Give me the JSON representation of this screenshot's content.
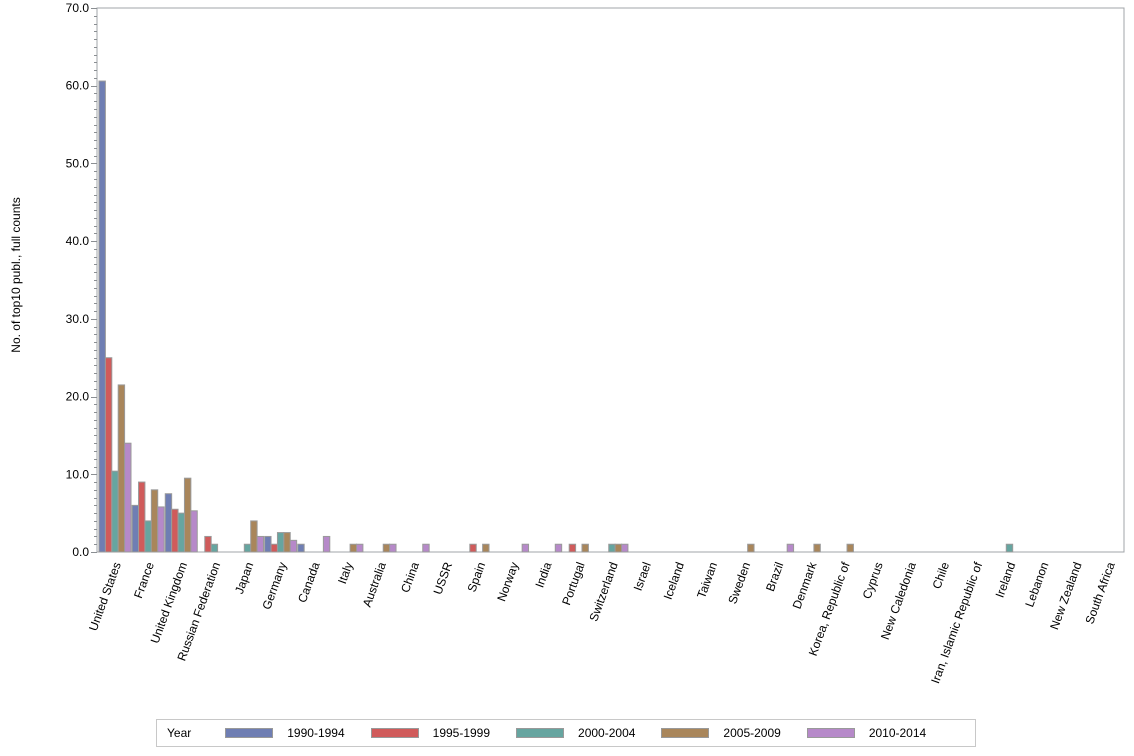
{
  "chart_data": {
    "type": "bar",
    "title": "",
    "xlabel": "",
    "ylabel": "No. of top10 publ., full counts",
    "ylim": [
      0,
      70
    ],
    "yticks": [
      "0.0",
      "10.0",
      "20.0",
      "30.0",
      "40.0",
      "50.0",
      "60.0",
      "70.0"
    ],
    "grid": false,
    "legend_position": "bottom",
    "legend_title": "Year",
    "categories": [
      "United States",
      "France",
      "United Kingdom",
      "Russian Federation",
      "Japan",
      "Germany",
      "Canada",
      "Italy",
      "Australia",
      "China",
      "USSR",
      "Spain",
      "Norway",
      "India",
      "Portugal",
      "Switzerland",
      "Israel",
      "Iceland",
      "Taiwan",
      "Sweden",
      "Brazil",
      "Denmark",
      "Korea, Republic of",
      "Cyprus",
      "New Caledonia",
      "Chile",
      "Iran, Islamic Republic of",
      "Ireland",
      "Lebanon",
      "New Zealand",
      "South Africa"
    ],
    "series": [
      {
        "name": "1990-1994",
        "color": "#6f7eb3",
        "values": [
          60.6,
          6.0,
          7.5,
          0,
          0,
          2.0,
          1.0,
          0,
          0,
          0,
          0,
          0,
          0,
          0,
          0,
          0,
          0,
          0,
          0,
          0,
          0,
          0,
          0,
          0,
          0,
          0,
          0,
          0,
          0,
          0,
          0
        ]
      },
      {
        "name": "1995-1999",
        "color": "#d05b5b",
        "values": [
          25.0,
          9.0,
          5.5,
          2.0,
          0,
          1.0,
          0,
          0,
          0,
          0,
          0,
          1.0,
          0,
          0,
          1.0,
          0,
          0,
          0,
          0,
          0,
          0,
          0,
          0,
          0,
          0,
          0,
          0,
          0,
          0,
          0,
          0
        ]
      },
      {
        "name": "2000-2004",
        "color": "#66a5a0",
        "values": [
          10.4,
          4.0,
          5.0,
          1.0,
          1.0,
          2.5,
          0,
          0,
          0,
          0,
          0,
          0,
          0,
          0,
          0,
          1.0,
          0,
          0,
          0,
          0,
          0,
          0,
          0,
          0,
          0,
          0,
          0,
          1.0,
          0,
          0,
          0
        ]
      },
      {
        "name": "2005-2009",
        "color": "#a9865b",
        "values": [
          21.5,
          8.0,
          9.5,
          0,
          4.0,
          2.5,
          0,
          1.0,
          1.0,
          0,
          0,
          1.0,
          0,
          0,
          1.0,
          1.0,
          0,
          0,
          0,
          1.0,
          0,
          1.0,
          1.0,
          0,
          0,
          0,
          0,
          0,
          0,
          0,
          0
        ]
      },
      {
        "name": "2010-2014",
        "color": "#b689c9",
        "values": [
          14.0,
          5.8,
          5.3,
          0,
          2.0,
          1.5,
          2.0,
          1.0,
          1.0,
          1.0,
          0,
          0,
          1.0,
          1.0,
          0,
          1.0,
          0,
          0,
          0,
          0,
          1.0,
          0,
          0,
          0,
          0,
          0,
          0,
          0,
          0,
          0,
          0
        ]
      }
    ]
  },
  "legend": {
    "title": "Year",
    "items": [
      {
        "label": "1990-1994",
        "color": "#6f7eb3"
      },
      {
        "label": "1995-1999",
        "color": "#d05b5b"
      },
      {
        "label": "2000-2004",
        "color": "#66a5a0"
      },
      {
        "label": "2005-2009",
        "color": "#a9865b"
      },
      {
        "label": "2010-2014",
        "color": "#b689c9"
      }
    ]
  }
}
